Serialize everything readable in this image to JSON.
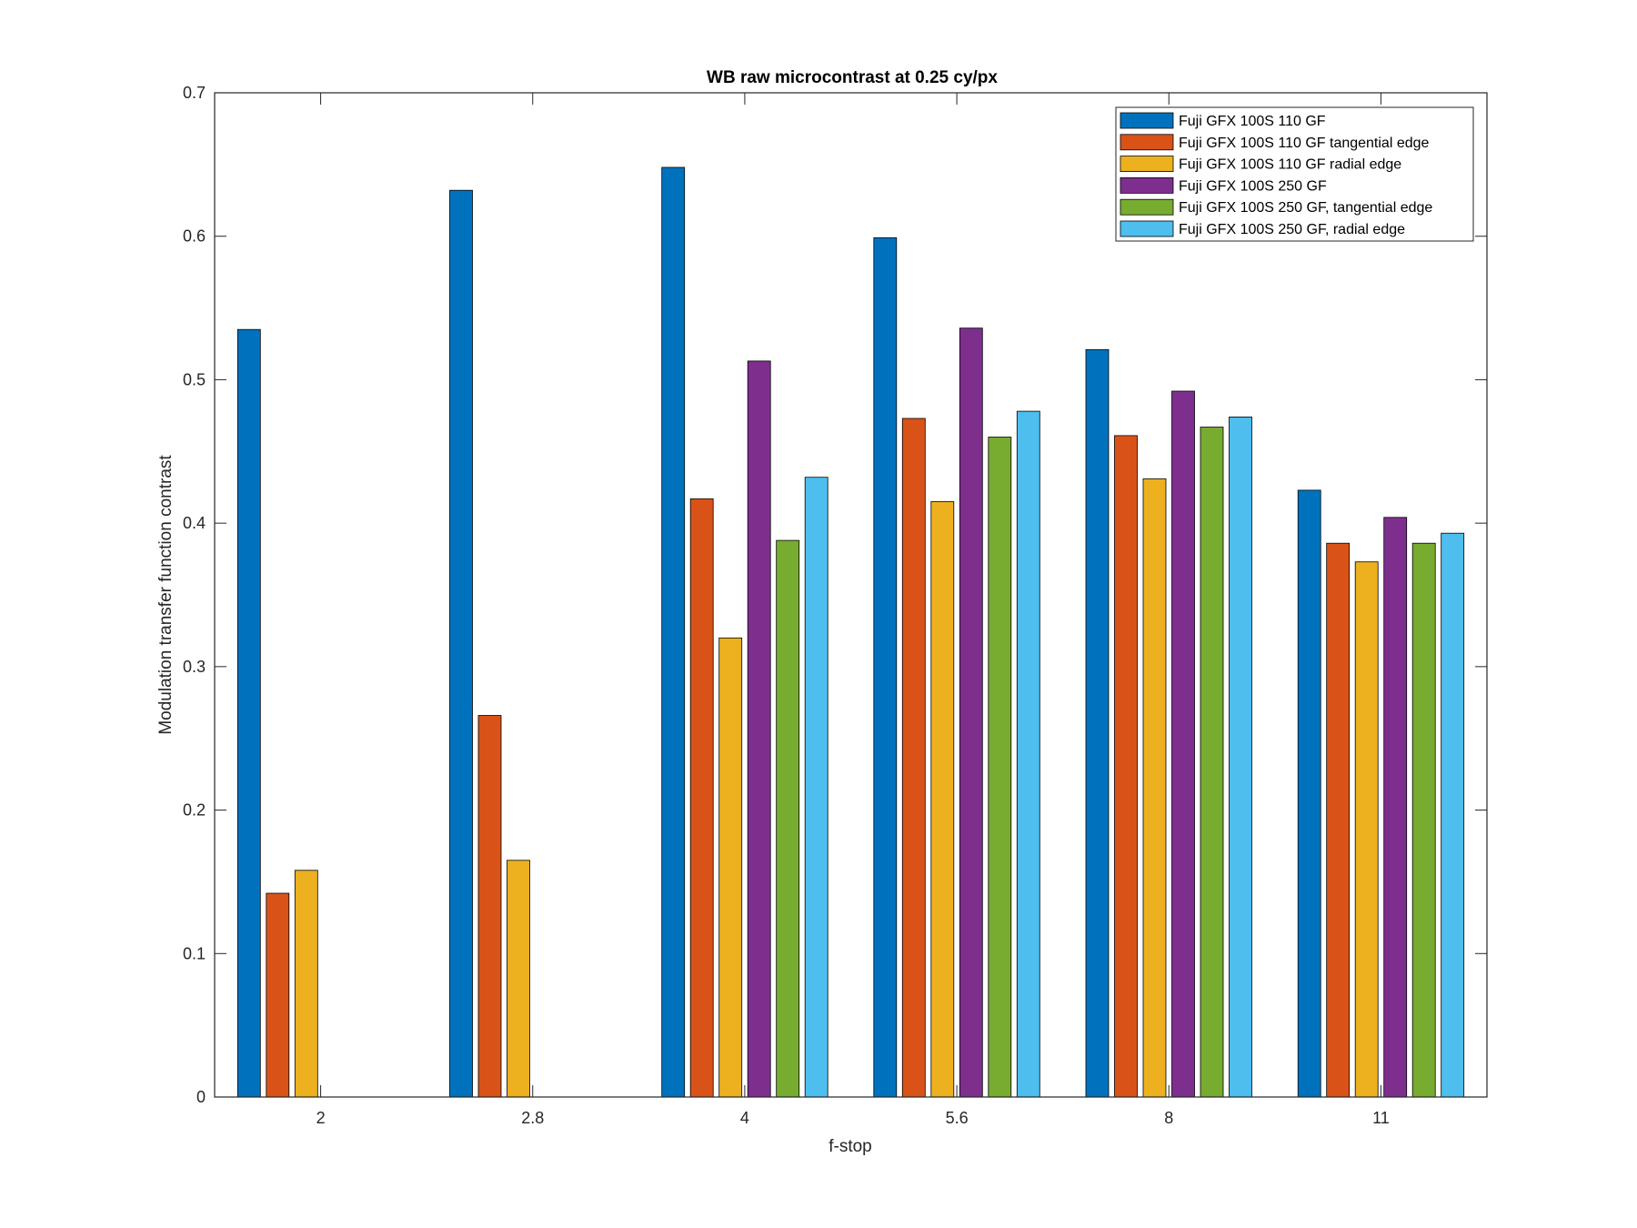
{
  "chart_data": {
    "type": "bar",
    "title": "WB raw  microcontrast at 0.25 cy/px",
    "xlabel": "f-stop",
    "ylabel": "Modulation transfer function contrast",
    "categories": [
      "2",
      "2.8",
      "4",
      "5.6",
      "8",
      "11"
    ],
    "ylim": [
      0,
      0.7
    ],
    "yticks": [
      0,
      0.1,
      0.2,
      0.3,
      0.4,
      0.5,
      0.6,
      0.7
    ],
    "ytick_labels": [
      "0",
      "0.1",
      "0.2",
      "0.3",
      "0.4",
      "0.5",
      "0.6",
      "0.7"
    ],
    "grid": false,
    "legend_position": "top-right",
    "series": [
      {
        "name": "Fuji GFX 100S 110 GF",
        "color": "#0072BD",
        "values": [
          0.535,
          0.632,
          0.648,
          0.599,
          0.521,
          0.423
        ]
      },
      {
        "name": "Fuji GFX 100S 110 GF tangential edge",
        "color": "#D95319",
        "values": [
          0.142,
          0.266,
          0.417,
          0.473,
          0.461,
          0.386
        ]
      },
      {
        "name": "Fuji GFX 100S 110 GF radial edge",
        "color": "#EDB120",
        "values": [
          0.158,
          0.165,
          0.32,
          0.415,
          0.431,
          0.373
        ]
      },
      {
        "name": "Fuji GFX 100S 250 GF",
        "color": "#7E2F8E",
        "values": [
          null,
          null,
          0.513,
          0.536,
          0.492,
          0.404
        ]
      },
      {
        "name": "Fuji GFX 100S 250 GF, tangential edge",
        "color": "#77AC30",
        "values": [
          null,
          null,
          0.388,
          0.46,
          0.467,
          0.386
        ]
      },
      {
        "name": "Fuji GFX 100S 250 GF, radial edge",
        "color": "#4DBEEE",
        "values": [
          null,
          null,
          0.432,
          0.478,
          0.474,
          0.393
        ]
      }
    ]
  }
}
